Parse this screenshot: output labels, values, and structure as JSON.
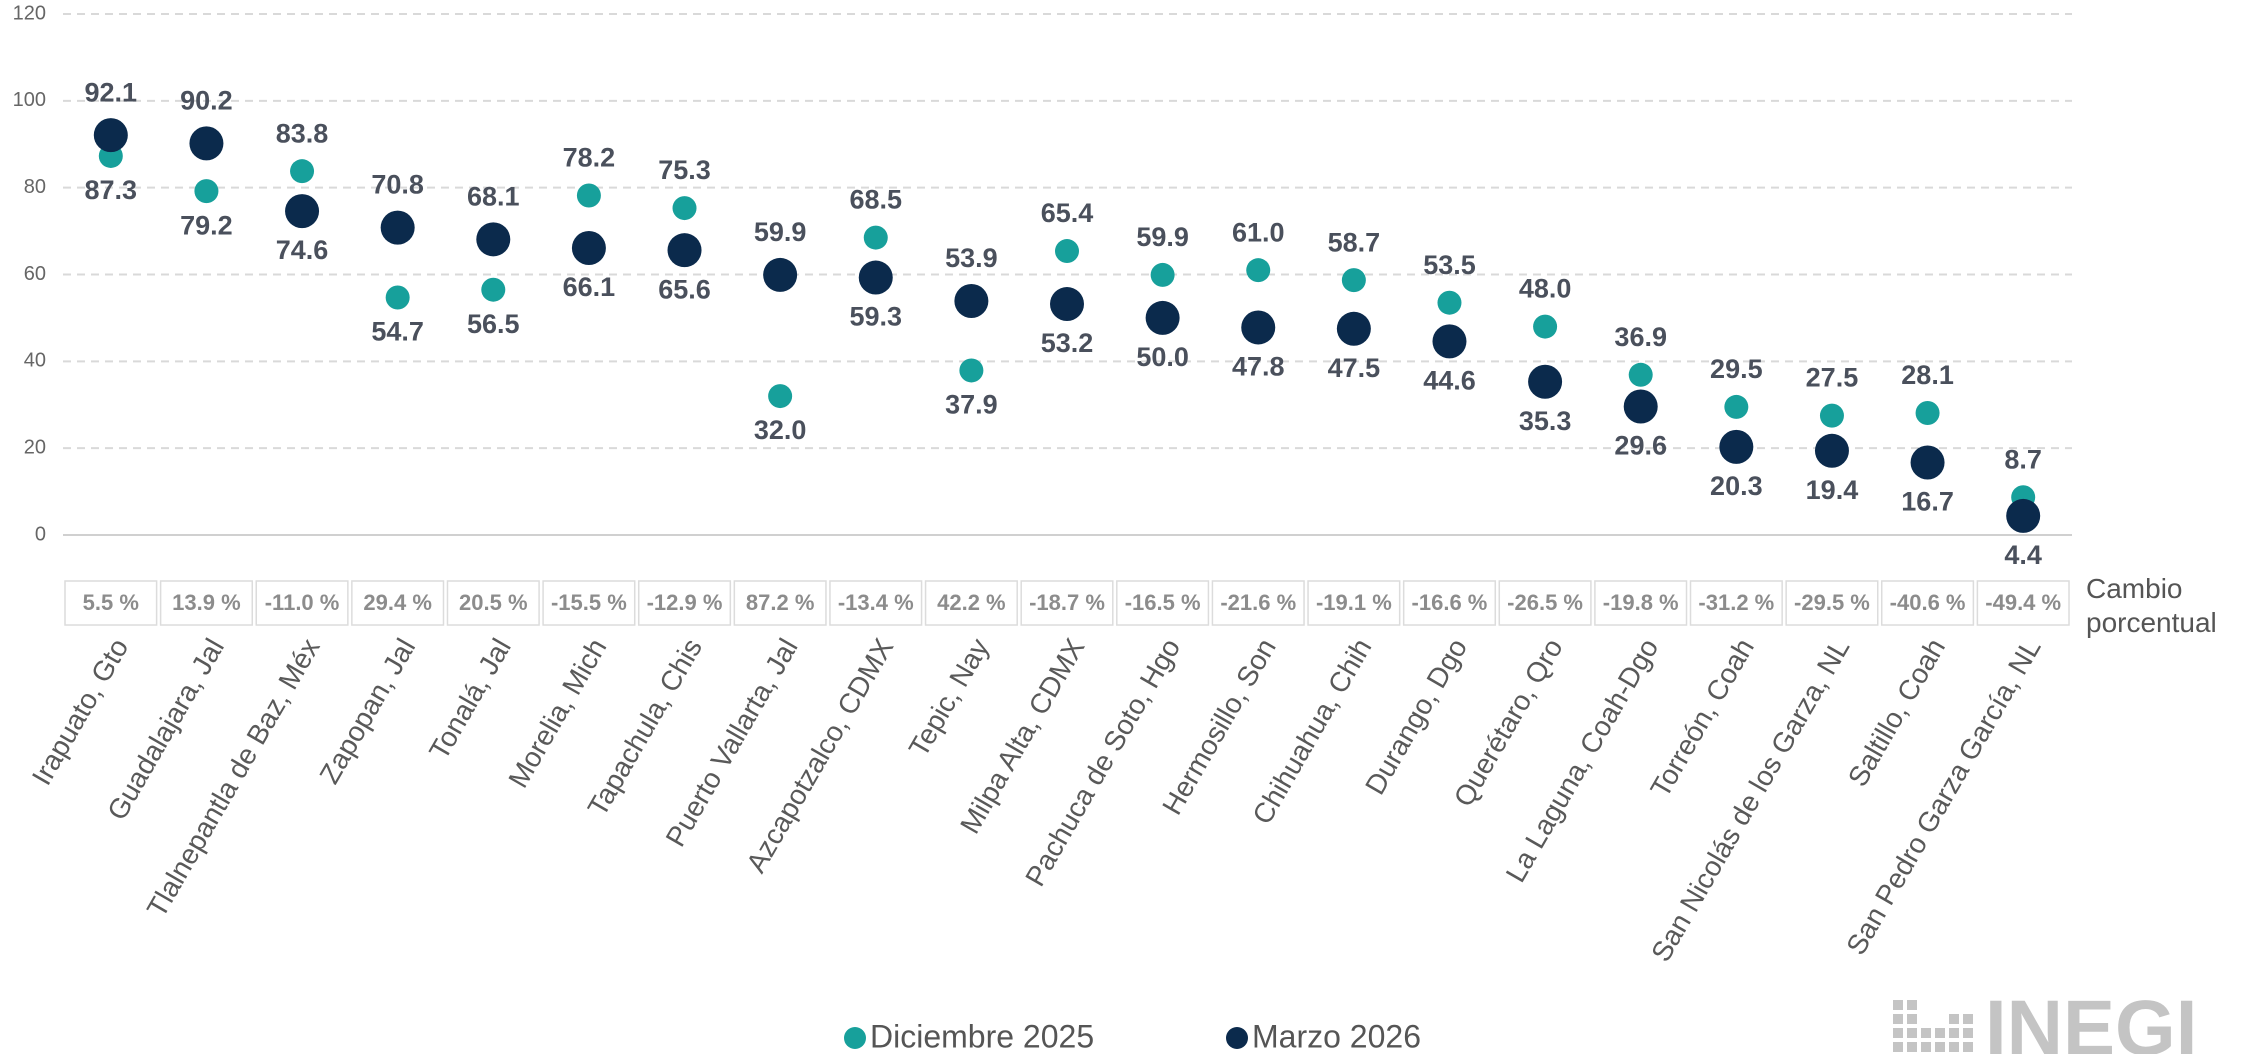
{
  "chart_data": {
    "type": "dot",
    "categories": [
      "Irapuato, Gto",
      "Guadalajara, Jal",
      "Tlalnepantla de Baz, Méx",
      "Zapopan, Jal",
      "Tonalá, Jal",
      "Morelia, Mich",
      "Tapachula, Chis",
      "Puerto Vallarta, Jal",
      "Azcapotzalco, CDMX",
      "Tepic, Nay",
      "Milpa Alta, CDMX",
      "Pachuca de Soto, Hgo",
      "Hermosillo, Son",
      "Chihuahua, Chih",
      "Durango, Dgo",
      "Querétaro, Qro",
      "La Laguna, Coah-Dgo",
      "Torreón, Coah",
      "San Nicolás de los Garza, NL",
      "Saltillo, Coah",
      "San Pedro Garza García, NL"
    ],
    "series": [
      {
        "name": "Diciembre 2025",
        "color": "#17a09b",
        "values": [
          87.3,
          79.2,
          83.8,
          54.7,
          56.5,
          78.2,
          75.3,
          32.0,
          68.5,
          37.9,
          65.4,
          59.9,
          61.0,
          58.7,
          53.5,
          48.0,
          36.9,
          29.5,
          27.5,
          28.1,
          8.7
        ],
        "value_labels": [
          "87.3",
          "79.2",
          "83.8",
          "54.7",
          "56.5",
          "78.2",
          "75.3",
          "32.0",
          "68.5",
          "37.9",
          "65.4",
          "59.9",
          "61.0",
          "58.7",
          "53.5",
          "48.0",
          "36.9",
          "29.5",
          "27.5",
          "28.1",
          "8.7"
        ]
      },
      {
        "name": "Marzo 2026",
        "color": "#0b2a4c",
        "values": [
          92.1,
          90.2,
          74.6,
          70.8,
          68.1,
          66.1,
          65.6,
          59.9,
          59.3,
          53.9,
          53.2,
          50.0,
          47.8,
          47.5,
          44.6,
          35.3,
          29.6,
          20.3,
          19.4,
          16.7,
          4.4
        ],
        "value_labels": [
          "92.1",
          "90.2",
          "74.6",
          "70.8",
          "68.1",
          "66.1",
          "65.6",
          "59.9",
          "59.3",
          "53.9",
          "53.2",
          "50.0",
          "47.8",
          "47.5",
          "44.6",
          "35.3",
          "29.6",
          "20.3",
          "19.4",
          "16.7",
          "4.4"
        ]
      }
    ],
    "change_label": "Cambio porcentual",
    "changes": [
      "5.5 %",
      "13.9 %",
      "-11.0 %",
      "29.4 %",
      "20.5 %",
      "-15.5 %",
      "-12.9 %",
      "87.2 %",
      "-13.4 %",
      "42.2 %",
      "-18.7 %",
      "-16.5 %",
      "-21.6 %",
      "-19.1 %",
      "-16.6 %",
      "-26.5 %",
      "-19.8 %",
      "-31.2 %",
      "-29.5 %",
      "-40.6 %",
      "-49.4 %"
    ],
    "ylim": [
      0,
      120
    ],
    "yticks": [
      0,
      20,
      40,
      60,
      80,
      100,
      120
    ],
    "grid": true,
    "logo": "INEGI"
  }
}
